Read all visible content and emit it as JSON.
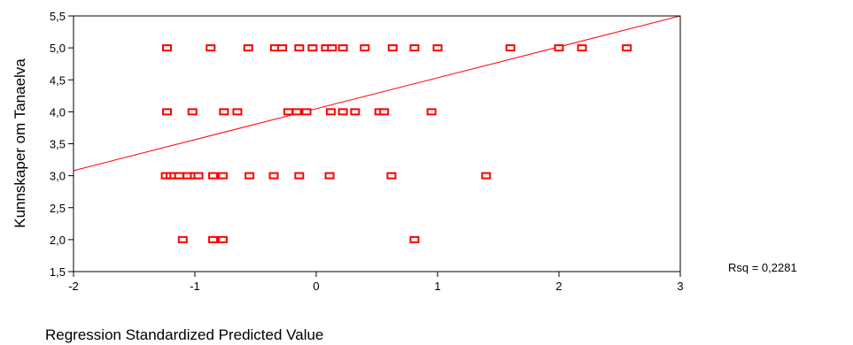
{
  "chart_data": {
    "type": "scatter",
    "title": "",
    "xlabel": "Regression Standardized Predicted Value",
    "ylabel": "Kunnskaper om Tanaelva",
    "xlim": [
      -2,
      3
    ],
    "ylim": [
      1.5,
      5.5
    ],
    "x_ticks": [
      "-2",
      "-1",
      "0",
      "1",
      "2",
      "3"
    ],
    "y_ticks": [
      "1,5",
      "2,0",
      "2,5",
      "3,0",
      "3,5",
      "4,0",
      "4,5",
      "5,0",
      "5,5"
    ],
    "grid": false,
    "annotation": "Rsq = 0,2281",
    "marker_color": "#ff0000",
    "fit_line_color": "#ff0000",
    "fit_line": {
      "x": [
        -2,
        3
      ],
      "y": [
        3.08,
        5.5
      ]
    },
    "points": [
      {
        "x": -1.23,
        "y": 5.0
      },
      {
        "x": -0.87,
        "y": 5.0
      },
      {
        "x": -0.56,
        "y": 5.0
      },
      {
        "x": -0.34,
        "y": 5.0
      },
      {
        "x": -0.28,
        "y": 5.0
      },
      {
        "x": -0.14,
        "y": 5.0
      },
      {
        "x": -0.03,
        "y": 5.0
      },
      {
        "x": 0.08,
        "y": 5.0
      },
      {
        "x": 0.13,
        "y": 5.0
      },
      {
        "x": 0.22,
        "y": 5.0
      },
      {
        "x": 0.4,
        "y": 5.0
      },
      {
        "x": 0.63,
        "y": 5.0
      },
      {
        "x": 0.81,
        "y": 5.0
      },
      {
        "x": 1.0,
        "y": 5.0
      },
      {
        "x": 1.6,
        "y": 5.0
      },
      {
        "x": 2.0,
        "y": 5.0
      },
      {
        "x": 2.19,
        "y": 5.0
      },
      {
        "x": 2.56,
        "y": 5.0
      },
      {
        "x": -1.23,
        "y": 4.0
      },
      {
        "x": -1.02,
        "y": 4.0
      },
      {
        "x": -0.76,
        "y": 4.0
      },
      {
        "x": -0.65,
        "y": 4.0
      },
      {
        "x": -0.23,
        "y": 4.0
      },
      {
        "x": -0.16,
        "y": 4.0
      },
      {
        "x": -0.08,
        "y": 4.0
      },
      {
        "x": 0.12,
        "y": 4.0
      },
      {
        "x": 0.22,
        "y": 4.0
      },
      {
        "x": 0.32,
        "y": 4.0
      },
      {
        "x": 0.52,
        "y": 4.0
      },
      {
        "x": 0.56,
        "y": 4.0
      },
      {
        "x": 0.95,
        "y": 4.0
      },
      {
        "x": -1.24,
        "y": 3.0
      },
      {
        "x": -1.2,
        "y": 3.0
      },
      {
        "x": -1.17,
        "y": 3.0
      },
      {
        "x": -1.13,
        "y": 3.0
      },
      {
        "x": -1.06,
        "y": 3.0
      },
      {
        "x": -1.0,
        "y": 3.0
      },
      {
        "x": -0.97,
        "y": 3.0
      },
      {
        "x": -0.85,
        "y": 3.0
      },
      {
        "x": -0.77,
        "y": 3.0
      },
      {
        "x": -0.55,
        "y": 3.0
      },
      {
        "x": -0.35,
        "y": 3.0
      },
      {
        "x": -0.14,
        "y": 3.0
      },
      {
        "x": 0.11,
        "y": 3.0
      },
      {
        "x": 0.62,
        "y": 3.0
      },
      {
        "x": 1.4,
        "y": 3.0
      },
      {
        "x": -1.1,
        "y": 2.0
      },
      {
        "x": -0.85,
        "y": 2.0
      },
      {
        "x": -0.77,
        "y": 2.0
      },
      {
        "x": 0.81,
        "y": 2.0
      }
    ]
  }
}
